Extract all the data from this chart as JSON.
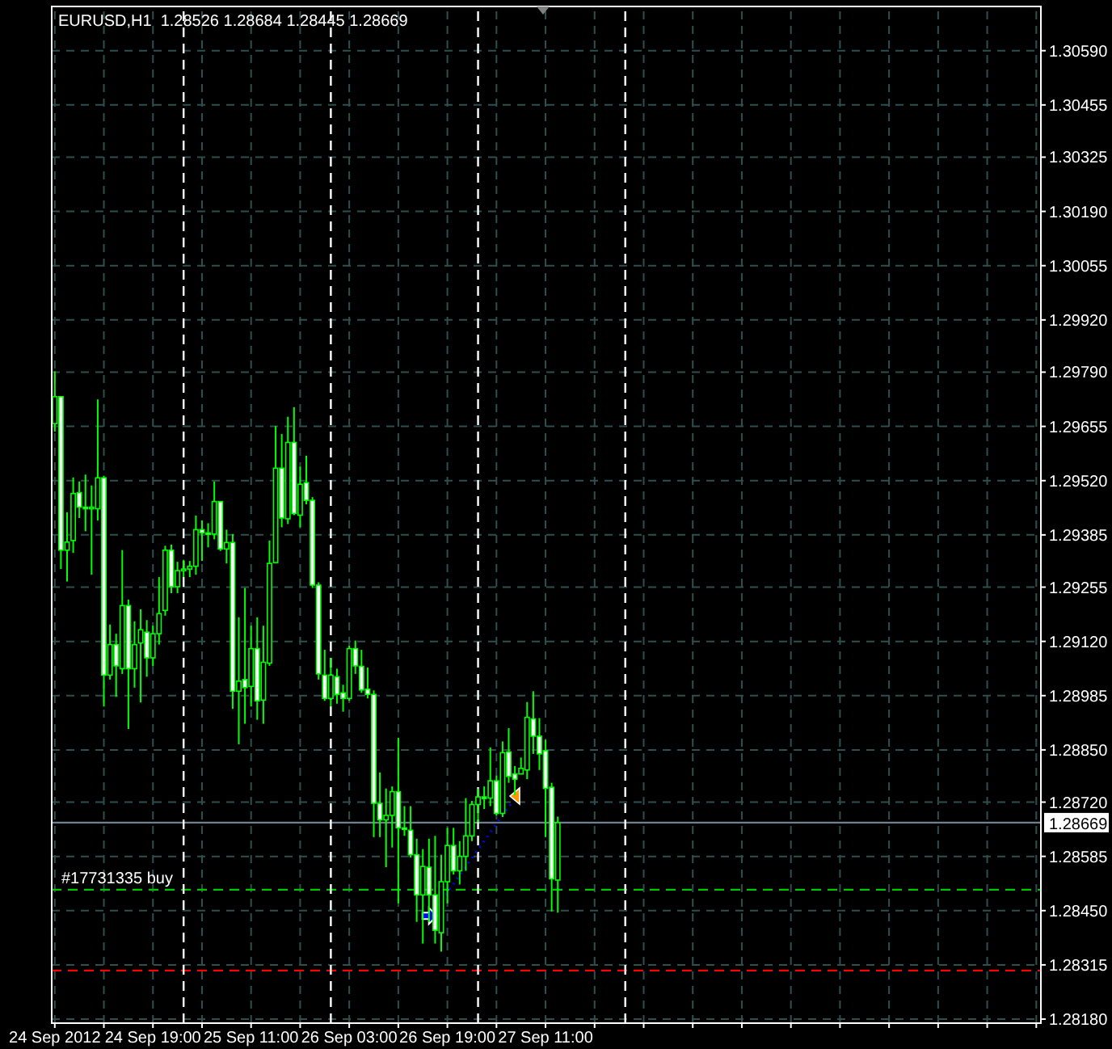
{
  "chart_data": {
    "type": "candlestick",
    "title": "EURUSD,H1  1.28526 1.28684 1.28445 1.28669",
    "color": "#00ff00",
    "grid": true,
    "x": [
      "2012-09-24T03:00",
      "2012-09-24T04:00",
      "2012-09-24T05:00",
      "2012-09-24T06:00",
      "2012-09-24T07:00",
      "2012-09-24T08:00",
      "2012-09-24T09:00",
      "2012-09-24T10:00",
      "2012-09-24T11:00",
      "2012-09-24T12:00",
      "2012-09-24T13:00",
      "2012-09-24T14:00",
      "2012-09-24T15:00",
      "2012-09-24T16:00",
      "2012-09-24T17:00",
      "2012-09-24T18:00",
      "2012-09-24T19:00",
      "2012-09-24T20:00",
      "2012-09-24T21:00",
      "2012-09-24T22:00",
      "2012-09-24T23:00",
      "2012-09-25T00:00",
      "2012-09-25T01:00",
      "2012-09-25T02:00",
      "2012-09-25T03:00",
      "2012-09-25T04:00",
      "2012-09-25T05:00",
      "2012-09-25T06:00",
      "2012-09-25T07:00",
      "2012-09-25T08:00",
      "2012-09-25T09:00",
      "2012-09-25T10:00",
      "2012-09-25T11:00",
      "2012-09-25T12:00",
      "2012-09-25T13:00",
      "2012-09-25T14:00",
      "2012-09-25T15:00",
      "2012-09-25T16:00",
      "2012-09-25T17:00",
      "2012-09-25T18:00",
      "2012-09-25T19:00",
      "2012-09-25T20:00",
      "2012-09-25T21:00",
      "2012-09-25T22:00",
      "2012-09-25T23:00",
      "2012-09-26T00:00",
      "2012-09-26T01:00",
      "2012-09-26T02:00",
      "2012-09-26T03:00",
      "2012-09-26T04:00",
      "2012-09-26T05:00",
      "2012-09-26T06:00",
      "2012-09-26T07:00",
      "2012-09-26T08:00",
      "2012-09-26T09:00",
      "2012-09-26T10:00",
      "2012-09-26T11:00",
      "2012-09-26T12:00",
      "2012-09-26T13:00",
      "2012-09-26T14:00",
      "2012-09-26T15:00",
      "2012-09-26T16:00",
      "2012-09-26T17:00",
      "2012-09-26T18:00",
      "2012-09-26T19:00",
      "2012-09-26T20:00",
      "2012-09-26T21:00",
      "2012-09-26T22:00",
      "2012-09-26T23:00",
      "2012-09-27T00:00",
      "2012-09-27T01:00",
      "2012-09-27T02:00",
      "2012-09-27T03:00",
      "2012-09-27T04:00",
      "2012-09-27T05:00",
      "2012-09-27T06:00",
      "2012-09-27T07:00",
      "2012-09-27T08:00",
      "2012-09-27T09:00",
      "2012-09-27T10:00",
      "2012-09-27T11:00",
      "2012-09-27T12:00",
      "2012-09-27T13:00"
    ],
    "ohlc": [
      [
        1.29662,
        1.29792,
        1.29642,
        1.29729
      ],
      [
        1.29729,
        1.29729,
        1.293,
        1.29347
      ],
      [
        1.29347,
        1.29441,
        1.29269,
        1.29367
      ],
      [
        1.29371,
        1.29528,
        1.2934,
        1.29488
      ],
      [
        1.2949,
        1.29518,
        1.29427,
        1.29454
      ],
      [
        1.29454,
        1.29535,
        1.29394,
        1.2945
      ],
      [
        1.2945,
        1.29508,
        1.29286,
        1.29454
      ],
      [
        1.2945,
        1.29722,
        1.29421,
        1.29527
      ],
      [
        1.29527,
        1.29532,
        1.28958,
        1.29036
      ],
      [
        1.29036,
        1.29162,
        1.29025,
        1.29112
      ],
      [
        1.29112,
        1.29139,
        1.28982,
        1.29059
      ],
      [
        1.29052,
        1.29347,
        1.29039,
        1.29209
      ],
      [
        1.29209,
        1.29224,
        1.28902,
        1.29052
      ],
      [
        1.29052,
        1.2917,
        1.29005,
        1.29112
      ],
      [
        1.29116,
        1.292,
        1.28968,
        1.29149
      ],
      [
        1.29143,
        1.29173,
        1.29032,
        1.29079
      ],
      [
        1.29079,
        1.29159,
        1.29059,
        1.29139
      ],
      [
        1.29139,
        1.2928,
        1.29112,
        1.29189
      ],
      [
        1.29197,
        1.29358,
        1.29184,
        1.29347
      ],
      [
        1.29347,
        1.29361,
        1.2924,
        1.29256
      ],
      [
        1.29256,
        1.29318,
        1.2924,
        1.29296
      ],
      [
        1.29296,
        1.29323,
        1.2928,
        1.293
      ],
      [
        1.293,
        1.2932,
        1.2928,
        1.29307
      ],
      [
        1.29307,
        1.29433,
        1.29286,
        1.29398
      ],
      [
        1.29398,
        1.29421,
        1.2932,
        1.2939
      ],
      [
        1.2939,
        1.29414,
        1.29354,
        1.29387
      ],
      [
        1.29387,
        1.29518,
        1.29374,
        1.29468
      ],
      [
        1.29468,
        1.29468,
        1.29345,
        1.2935
      ],
      [
        1.2935,
        1.29398,
        1.29314,
        1.29366
      ],
      [
        1.29366,
        1.29387,
        1.28952,
        1.28996
      ],
      [
        1.28996,
        1.2918,
        1.28864,
        1.29021
      ],
      [
        1.29025,
        1.29253,
        1.28915,
        1.29005
      ],
      [
        1.29008,
        1.29159,
        1.28958,
        1.29102
      ],
      [
        1.29102,
        1.2918,
        1.28925,
        1.28972
      ],
      [
        1.28974,
        1.29159,
        1.28915,
        1.29068
      ],
      [
        1.29066,
        1.29371,
        1.29059,
        1.29314
      ],
      [
        1.29316,
        1.29656,
        1.29314,
        1.29551
      ],
      [
        1.29551,
        1.29636,
        1.29404,
        1.29427
      ],
      [
        1.29425,
        1.29679,
        1.29412,
        1.29615
      ],
      [
        1.29615,
        1.29703,
        1.29434,
        1.29438
      ],
      [
        1.29434,
        1.29555,
        1.29404,
        1.29511
      ],
      [
        1.29515,
        1.29582,
        1.29461,
        1.29471
      ],
      [
        1.29471,
        1.29479,
        1.29253,
        1.2926
      ],
      [
        1.2926,
        1.29267,
        1.29025,
        1.29039
      ],
      [
        1.29036,
        1.29099,
        1.28972,
        1.28978
      ],
      [
        1.28978,
        1.29079,
        1.28958,
        1.29036
      ],
      [
        1.29032,
        1.29052,
        1.28965,
        1.28988
      ],
      [
        1.28992,
        1.29012,
        1.28945,
        1.28978
      ],
      [
        1.28978,
        1.2911,
        1.28972,
        1.29102
      ],
      [
        1.29102,
        1.29122,
        1.29039,
        1.29059
      ],
      [
        1.29058,
        1.29099,
        1.28992,
        1.28999
      ],
      [
        1.29001,
        1.29055,
        1.28978,
        1.28988
      ],
      [
        1.28988,
        1.28998,
        1.28633,
        1.28717
      ],
      [
        1.28717,
        1.28794,
        1.28633,
        1.28676
      ],
      [
        1.28676,
        1.28754,
        1.28558,
        1.28687
      ],
      [
        1.28687,
        1.28759,
        1.28607,
        1.28746
      ],
      [
        1.28746,
        1.2888,
        1.28468,
        1.28656
      ],
      [
        1.28656,
        1.2871,
        1.28636,
        1.28652
      ],
      [
        1.2865,
        1.2871,
        1.28582,
        1.28589
      ],
      [
        1.28589,
        1.28629,
        1.28422,
        1.28489
      ],
      [
        1.28489,
        1.28603,
        1.28368,
        1.2856
      ],
      [
        1.28558,
        1.28629,
        1.28422,
        1.28489
      ],
      [
        1.28489,
        1.28636,
        1.28368,
        1.28401
      ],
      [
        1.28395,
        1.28589,
        1.28348,
        1.28522
      ],
      [
        1.28522,
        1.28656,
        1.28468,
        1.28612
      ],
      [
        1.28612,
        1.28656,
        1.2854,
        1.28549
      ],
      [
        1.28549,
        1.28623,
        1.28515,
        1.28585
      ],
      [
        1.28585,
        1.2873,
        1.28549,
        1.28636
      ],
      [
        1.28636,
        1.28723,
        1.28623,
        1.28714
      ],
      [
        1.28714,
        1.28754,
        1.2867,
        1.28733
      ],
      [
        1.28733,
        1.28759,
        1.28703,
        1.2873
      ],
      [
        1.2873,
        1.28856,
        1.2871,
        1.28773
      ],
      [
        1.28773,
        1.28786,
        1.28687,
        1.28692
      ],
      [
        1.28692,
        1.28871,
        1.28683,
        1.28843
      ],
      [
        1.28845,
        1.28904,
        1.28768,
        1.28784
      ],
      [
        1.2879,
        1.2881,
        1.28737,
        1.28777
      ],
      [
        1.2879,
        1.28831,
        1.2879,
        1.28804
      ],
      [
        1.288,
        1.28969,
        1.28777,
        1.28931
      ],
      [
        1.28927,
        1.28996,
        1.2884,
        1.28884
      ],
      [
        1.28884,
        1.28929,
        1.288,
        1.2884
      ],
      [
        1.28848,
        1.28875,
        1.28633,
        1.28754
      ],
      [
        1.28757,
        1.28768,
        1.28448,
        1.28529
      ],
      [
        1.28526,
        1.28684,
        1.28445,
        1.28669
      ]
    ],
    "series": [
      {
        "type": "line",
        "x": [
          "2012-09-26T16:15",
          "2012-09-27T06:15"
        ],
        "values": [
          1.28437,
          1.28735
        ],
        "color": "#0000ff",
        "line_style": "dotted",
        "marker": "triangle"
      }
    ],
    "xlim": [
      "2012-09-24T02:30",
      "2012-09-30T19:45"
    ],
    "xticks": [
      {
        "value": "2012-09-24T03:00",
        "label": "24 Sep 2012"
      },
      {
        "value": "2012-09-24T11:00",
        "label": null
      },
      {
        "value": "2012-09-24T19:00",
        "label": "24 Sep 19:00"
      },
      {
        "value": "2012-09-25T03:00",
        "label": null
      },
      {
        "value": "2012-09-25T11:00",
        "label": "25 Sep 11:00"
      },
      {
        "value": "2012-09-25T19:00",
        "label": null
      },
      {
        "value": "2012-09-26T03:00",
        "label": "26 Sep 03:00"
      },
      {
        "value": "2012-09-26T11:00",
        "label": null
      },
      {
        "value": "2012-09-26T19:00",
        "label": "26 Sep 19:00"
      },
      {
        "value": "2012-09-27T03:00",
        "label": null
      },
      {
        "value": "2012-09-27T11:00",
        "label": "27 Sep 11:00"
      },
      {
        "value": "2012-09-27T19:00",
        "label": null
      },
      {
        "value": "2012-09-28T03:00",
        "label": null
      },
      {
        "value": "2012-09-28T11:00",
        "label": null
      },
      {
        "value": "2012-09-28T19:00",
        "label": null
      },
      {
        "value": "2012-09-29T03:00",
        "label": null
      },
      {
        "value": "2012-09-29T11:00",
        "label": null
      },
      {
        "value": "2012-09-29T19:00",
        "label": null
      },
      {
        "value": "2012-09-30T03:00",
        "label": null
      },
      {
        "value": "2012-09-30T11:00",
        "label": null
      },
      {
        "value": "2012-09-30T19:00",
        "label": null
      }
    ],
    "ylim": [
      1.2817,
      1.307
    ],
    "yticks": [
      {
        "value": 1.3059,
        "label": "1.30590"
      },
      {
        "value": 1.30455,
        "label": "1.30455"
      },
      {
        "value": 1.30325,
        "label": "1.30325"
      },
      {
        "value": 1.3019,
        "label": "1.30190"
      },
      {
        "value": 1.30055,
        "label": "1.30055"
      },
      {
        "value": 1.2992,
        "label": "1.29920"
      },
      {
        "value": 1.2979,
        "label": "1.29790"
      },
      {
        "value": 1.29655,
        "label": "1.29655"
      },
      {
        "value": 1.2952,
        "label": "1.29520"
      },
      {
        "value": 1.29385,
        "label": "1.29385"
      },
      {
        "value": 1.29255,
        "label": "1.29255"
      },
      {
        "value": 1.2912,
        "label": "1.29120"
      },
      {
        "value": 1.28985,
        "label": "1.28985"
      },
      {
        "value": 1.2885,
        "label": "1.28850"
      },
      {
        "value": 1.2872,
        "label": "1.28720"
      },
      {
        "value": 1.28585,
        "label": "1.28585"
      },
      {
        "value": 1.2845,
        "label": "1.28450"
      },
      {
        "value": 1.28315,
        "label": "1.28315"
      },
      {
        "value": 1.2818,
        "label": "1.28180"
      }
    ],
    "ref_lines": [
      {
        "axis": "y",
        "value": 1.28669,
        "label": "1.28669",
        "color": "#708090",
        "line_style": "solid"
      },
      {
        "axis": "y",
        "value": 1.28502,
        "label": "#17731335 buy",
        "color": "#00c800",
        "line_style": "dashed"
      },
      {
        "axis": "y",
        "value": 1.28301,
        "color": "#ff0000",
        "line_style": "dashed"
      },
      {
        "axis": "x",
        "value": "2012-09-25T00:00",
        "color": "#ffffff",
        "line_style": "dashed"
      },
      {
        "axis": "x",
        "value": "2012-09-26T00:00",
        "color": "#ffffff",
        "line_style": "dashed"
      },
      {
        "axis": "x",
        "value": "2012-09-27T00:00",
        "color": "#ffffff",
        "line_style": "dashed"
      },
      {
        "axis": "x",
        "value": "2012-09-28T00:00",
        "color": "#ffffff",
        "line_style": "dashed"
      }
    ]
  }
}
